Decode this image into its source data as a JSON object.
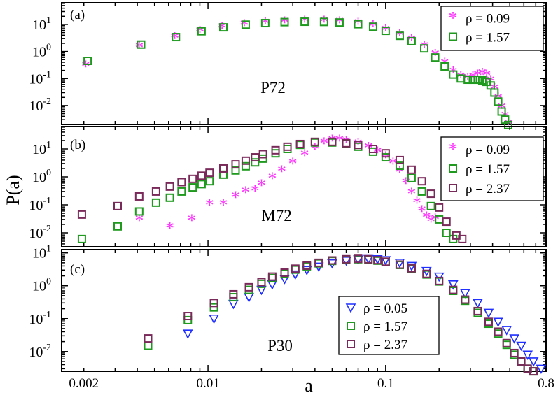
{
  "figure": {
    "xlabel": "a",
    "ylabel": "P(a)",
    "x_scale": "log",
    "y_scale": "log",
    "x_range": [
      0.0015,
      0.8
    ],
    "x_ticks": [
      {
        "value": 0.002,
        "label": "0.002"
      },
      {
        "value": 0.01,
        "label": "0.01"
      },
      {
        "value": 0.1,
        "label": "0.1"
      },
      {
        "value": 0.8,
        "label": "0.8"
      }
    ],
    "symbols": {
      "star": "*",
      "square": "□",
      "triangle": "▽"
    },
    "colors": {
      "rho_0.09": "#ff33ff",
      "rho_0.05": "#1f2fff",
      "rho_1.57": "#1f9a1f",
      "rho_2.37": "#7a2a5a"
    }
  },
  "chart_data": [
    {
      "type": "scatter",
      "panel_label": "(a)",
      "annotation": "P72",
      "yexp_range": [
        -2.7,
        1.8
      ],
      "yticks": [
        {
          "base": "10",
          "exp": "1",
          "value": 1
        },
        {
          "base": "10",
          "exp": "0",
          "value": 0
        },
        {
          "base": "10",
          "exp": "-1",
          "value": -1
        },
        {
          "base": "10",
          "exp": "-2",
          "value": -2
        }
      ],
      "series": [
        {
          "name": "ρ = 0.09",
          "marker": "star",
          "color": "#ff33ff",
          "x": [
            0.00205,
            0.0041,
            0.0065,
            0.009,
            0.012,
            0.016,
            0.021,
            0.027,
            0.035,
            0.045,
            0.055,
            0.07,
            0.085,
            0.1,
            0.12,
            0.14,
            0.165,
            0.19,
            0.215,
            0.24,
            0.265,
            0.29,
            0.31,
            0.33,
            0.35,
            0.37,
            0.39,
            0.41,
            0.43,
            0.45,
            0.47,
            0.49
          ],
          "y": [
            0.28,
            1.4,
            3.1,
            5.3,
            7.5,
            9.5,
            11,
            12,
            12.5,
            12.5,
            12,
            10.5,
            8.5,
            6,
            4,
            2.6,
            1.5,
            0.75,
            0.35,
            0.17,
            0.11,
            0.1,
            0.11,
            0.13,
            0.15,
            0.13,
            0.08,
            0.04,
            0.018,
            0.008,
            0.004,
            0.002
          ]
        },
        {
          "name": "ρ = 1.57",
          "marker": "square",
          "color": "#1f9a1f",
          "x": [
            0.0021,
            0.0042,
            0.0066,
            0.0092,
            0.0122,
            0.0163,
            0.021,
            0.027,
            0.035,
            0.045,
            0.055,
            0.07,
            0.085,
            0.1,
            0.12,
            0.14,
            0.165,
            0.19,
            0.215,
            0.24,
            0.265,
            0.29,
            0.31,
            0.33,
            0.35,
            0.37,
            0.39,
            0.41,
            0.43,
            0.45,
            0.47,
            0.49
          ],
          "y": [
            0.45,
            1.8,
            3.4,
            5.6,
            7.8,
            9.8,
            11.2,
            12.2,
            12.6,
            12.4,
            11.8,
            10.2,
            8.2,
            5.8,
            3.8,
            2.4,
            1.3,
            0.6,
            0.28,
            0.14,
            0.1,
            0.09,
            0.09,
            0.09,
            0.085,
            0.075,
            0.055,
            0.03,
            0.014,
            0.006,
            0.003,
            0.0019
          ]
        }
      ]
    },
    {
      "type": "scatter",
      "panel_label": "(b)",
      "annotation": "M72",
      "yexp_range": [
        -2.5,
        1.8
      ],
      "yticks": [
        {
          "base": "10",
          "exp": "1",
          "value": 1
        },
        {
          "base": "10",
          "exp": "0",
          "value": 0
        },
        {
          "base": "10",
          "exp": "-1",
          "value": -1
        },
        {
          "base": "10",
          "exp": "-2",
          "value": -2
        }
      ],
      "series": [
        {
          "name": "ρ = 0.09",
          "marker": "star",
          "color": "#ff33ff",
          "x": [
            0.0041,
            0.0061,
            0.0081,
            0.0102,
            0.0122,
            0.0143,
            0.0163,
            0.0184,
            0.02,
            0.023,
            0.026,
            0.03,
            0.035,
            0.04,
            0.045,
            0.05,
            0.055,
            0.06,
            0.07,
            0.08,
            0.09,
            0.1,
            0.11,
            0.12,
            0.13,
            0.14,
            0.15,
            0.16,
            0.17,
            0.18,
            0.19
          ],
          "y": [
            0.028,
            0.015,
            0.028,
            0.1,
            0.1,
            0.19,
            0.28,
            0.32,
            0.5,
            0.9,
            1.6,
            3,
            6,
            10,
            16,
            20,
            20,
            18,
            15,
            11,
            7.5,
            5,
            3,
            1.5,
            0.6,
            0.25,
            0.12,
            0.06,
            0.035,
            0.025,
            0.03
          ]
        },
        {
          "name": "ρ = 1.57",
          "marker": "square",
          "color": "#1f9a1f",
          "x": [
            0.00195,
            0.0031,
            0.0041,
            0.0051,
            0.0061,
            0.0071,
            0.0082,
            0.0092,
            0.0102,
            0.0122,
            0.0143,
            0.0163,
            0.0184,
            0.0204,
            0.024,
            0.028,
            0.033,
            0.04,
            0.05,
            0.06,
            0.07,
            0.085,
            0.1,
            0.12,
            0.14,
            0.16,
            0.18,
            0.2,
            0.22,
            0.24
          ],
          "y": [
            0.006,
            0.017,
            0.058,
            0.12,
            0.18,
            0.3,
            0.42,
            0.55,
            0.7,
            1.2,
            1.7,
            2.4,
            3.3,
            4.5,
            7,
            10,
            14,
            17,
            17,
            15,
            12,
            8,
            5,
            2.5,
            0.9,
            0.3,
            0.09,
            0.03,
            0.01,
            0.006
          ]
        },
        {
          "name": "ρ = 2.37",
          "marker": "square",
          "color": "#7a2a5a",
          "x": [
            0.00195,
            0.0031,
            0.0041,
            0.0051,
            0.0061,
            0.0071,
            0.0082,
            0.0092,
            0.0102,
            0.0122,
            0.0143,
            0.0163,
            0.0184,
            0.0204,
            0.024,
            0.028,
            0.033,
            0.04,
            0.05,
            0.06,
            0.07,
            0.085,
            0.1,
            0.12,
            0.14,
            0.16,
            0.18,
            0.2,
            0.22,
            0.25,
            0.27
          ],
          "y": [
            0.045,
            0.09,
            0.2,
            0.3,
            0.45,
            0.65,
            0.85,
            1.1,
            1.4,
            2,
            2.8,
            3.8,
            5,
            6.5,
            9,
            12,
            15,
            18,
            18,
            16,
            14,
            10,
            7,
            4,
            1.8,
            0.7,
            0.25,
            0.08,
            0.025,
            0.008,
            0.006
          ]
        }
      ]
    },
    {
      "type": "scatter",
      "panel_label": "(c)",
      "annotation": "P30",
      "yexp_range": [
        -2.6,
        1.1
      ],
      "yticks": [
        {
          "base": "10",
          "exp": "1",
          "value": 1
        },
        {
          "base": "10",
          "exp": "0",
          "value": 0
        },
        {
          "base": "10",
          "exp": "-1",
          "value": -1
        },
        {
          "base": "10",
          "exp": "-2",
          "value": -2
        }
      ],
      "series": [
        {
          "name": "ρ = 0.05",
          "marker": "triangle",
          "color": "#1f2fff",
          "x": [
            0.0077,
            0.0108,
            0.0139,
            0.017,
            0.02,
            0.023,
            0.027,
            0.031,
            0.036,
            0.042,
            0.05,
            0.06,
            0.07,
            0.08,
            0.09,
            0.1,
            0.12,
            0.14,
            0.17,
            0.2,
            0.24,
            0.28,
            0.33,
            0.38,
            0.43,
            0.48,
            0.53,
            0.58,
            0.63,
            0.68,
            0.75
          ],
          "y": [
            0.035,
            0.1,
            0.28,
            0.45,
            0.75,
            1.1,
            1.6,
            2.2,
            3,
            3.8,
            4.8,
            5.8,
            6.3,
            6.5,
            6.4,
            6,
            5,
            4,
            2.8,
            1.9,
            1.1,
            0.6,
            0.3,
            0.15,
            0.08,
            0.045,
            0.025,
            0.015,
            0.008,
            0.005,
            0.003
          ]
        },
        {
          "name": "ρ = 1.57",
          "marker": "square",
          "color": "#1f9a1f",
          "x": [
            0.0046,
            0.0077,
            0.0108,
            0.0139,
            0.017,
            0.02,
            0.023,
            0.027,
            0.031,
            0.036,
            0.042,
            0.05,
            0.06,
            0.07,
            0.08,
            0.09,
            0.1,
            0.12,
            0.14,
            0.17,
            0.2,
            0.24,
            0.28,
            0.33,
            0.38,
            0.43,
            0.48,
            0.53,
            0.58,
            0.63,
            0.68
          ],
          "y": [
            0.015,
            0.09,
            0.22,
            0.45,
            0.75,
            1.15,
            1.7,
            2.3,
            3.1,
            3.9,
            4.8,
            5.7,
            6.2,
            6.4,
            6.2,
            5.8,
            5.3,
            4.3,
            3.3,
            2.2,
            1.35,
            0.7,
            0.35,
            0.15,
            0.07,
            0.035,
            0.016,
            0.008,
            0.005,
            0.003,
            0.0025
          ]
        },
        {
          "name": "ρ = 2.37",
          "marker": "square",
          "color": "#7a2a5a",
          "x": [
            0.0046,
            0.0077,
            0.0108,
            0.0139,
            0.017,
            0.02,
            0.023,
            0.027,
            0.031,
            0.036,
            0.042,
            0.05,
            0.06,
            0.07,
            0.08,
            0.09,
            0.1,
            0.12,
            0.14,
            0.17,
            0.2,
            0.24,
            0.28,
            0.33,
            0.38,
            0.43,
            0.48,
            0.53,
            0.58,
            0.63,
            0.68
          ],
          "y": [
            0.025,
            0.12,
            0.3,
            0.55,
            0.9,
            1.3,
            1.9,
            2.5,
            3.3,
            4.1,
            5,
            5.9,
            6.4,
            6.6,
            6.4,
            6,
            5.4,
            4.4,
            3.4,
            2.3,
            1.4,
            0.75,
            0.38,
            0.17,
            0.08,
            0.04,
            0.018,
            0.009,
            0.005,
            0.003,
            0.0025
          ]
        }
      ]
    }
  ]
}
